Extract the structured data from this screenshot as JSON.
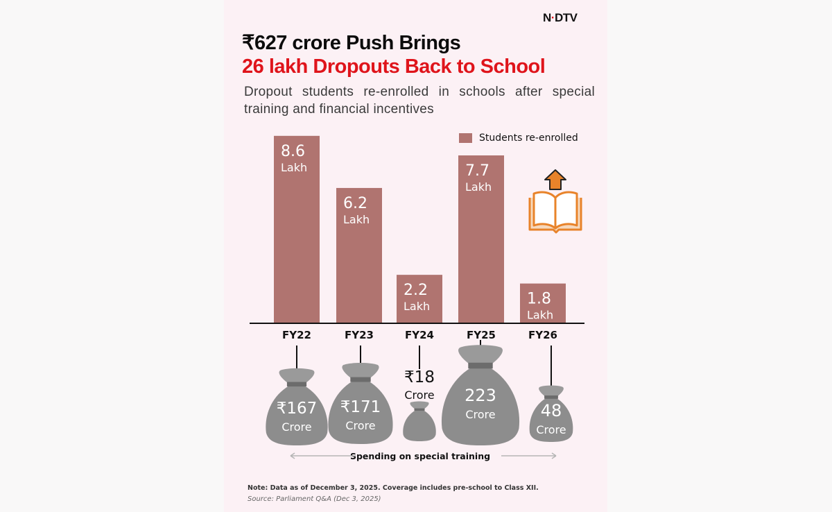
{
  "brand": {
    "logo": "NDTV"
  },
  "header": {
    "title_line1": "₹627 crore Push Brings",
    "title_line2": "26 lakh Dropouts Back to School",
    "subtitle": "Dropout students re-enrolled in schools after special training and financial incentives"
  },
  "colors": {
    "bar": "#b07470",
    "title_accent": "#df141b",
    "bag": "#8a8a8a",
    "book_icon": "#e8832a"
  },
  "icons": [
    "book-with-up-arrow-icon",
    "money-bag-icon"
  ],
  "chart_data": {
    "type": "bar",
    "categories": [
      "FY22",
      "FY23",
      "FY24",
      "FY25",
      "FY26"
    ],
    "series": [
      {
        "name": "Students re-enrolled",
        "values": [
          8.6,
          6.2,
          2.2,
          7.7,
          1.8
        ],
        "unit": "Lakh",
        "labels": [
          "8.6",
          "6.2",
          "2.2",
          "7.7",
          "1.8"
        ]
      }
    ],
    "spending": {
      "label": "Spending on special training",
      "values": [
        167,
        171,
        18,
        223,
        48
      ],
      "unit": "Crore",
      "labels": [
        "₹167",
        "₹171",
        "₹18",
        "223",
        "48"
      ]
    },
    "legend": "Students re-enrolled",
    "legend_position": "top-right",
    "grid": false,
    "ylim": [
      0,
      9
    ]
  },
  "footer": {
    "note": "Note: Data as of December 3, 2025. Coverage includes pre-school to Class XII.",
    "source": "Source: Parliament Q&A (Dec 3, 2025)"
  }
}
